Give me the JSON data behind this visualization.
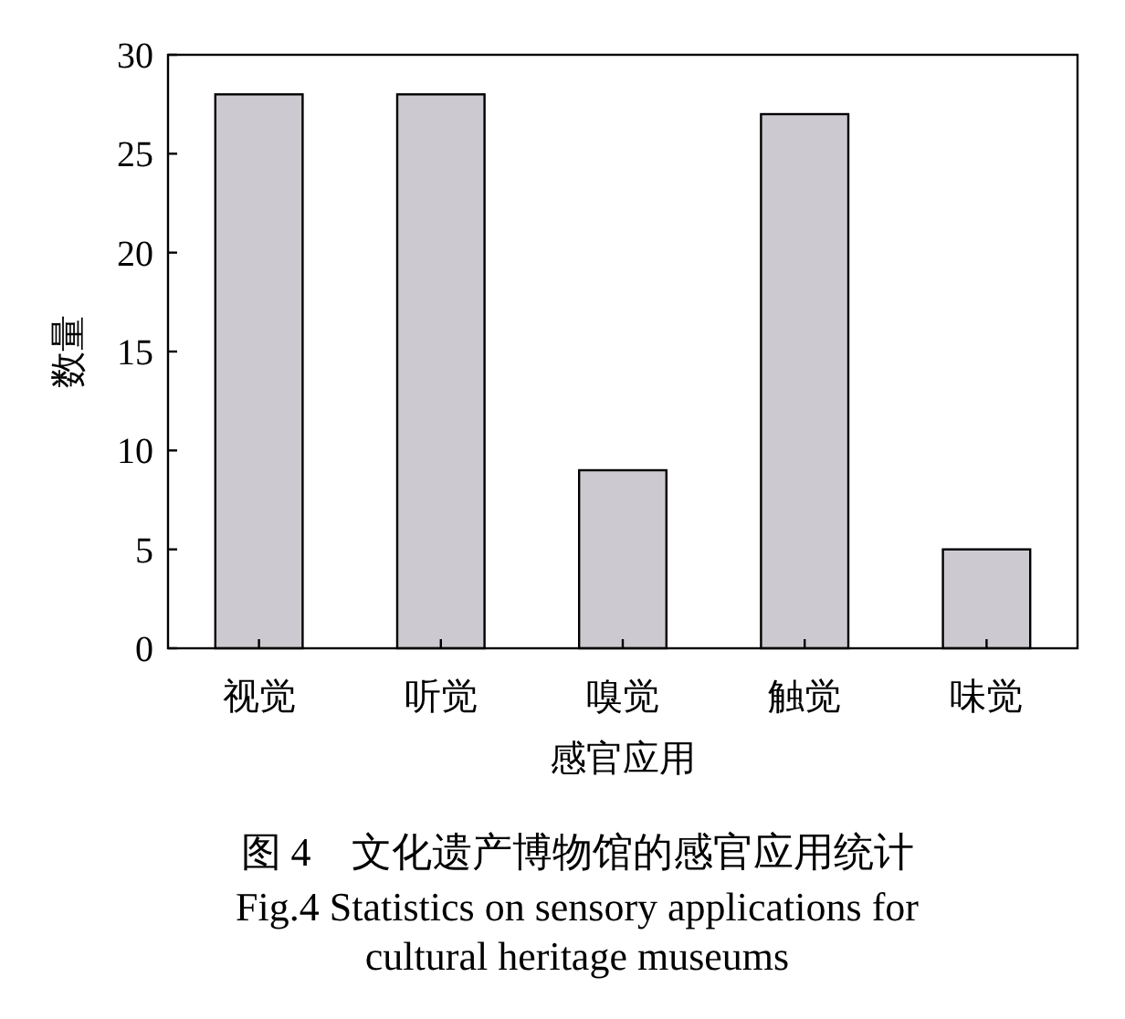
{
  "chart_data": {
    "type": "bar",
    "categories": [
      "视觉",
      "听觉",
      "嗅觉",
      "触觉",
      "味觉"
    ],
    "values": [
      28,
      28,
      9,
      27,
      5
    ],
    "color": "#cdc9d0",
    "xlabel": "感官应用",
    "ylabel": "数量",
    "ylim": [
      0,
      30
    ],
    "yticks": [
      0,
      5,
      10,
      15,
      20,
      25,
      30
    ],
    "grid": false,
    "annotations": [
      "图 4　文化遗产博物馆的感官应用统计",
      "Fig.4 Statistics on sensory applications for cultural heritage museums"
    ]
  }
}
